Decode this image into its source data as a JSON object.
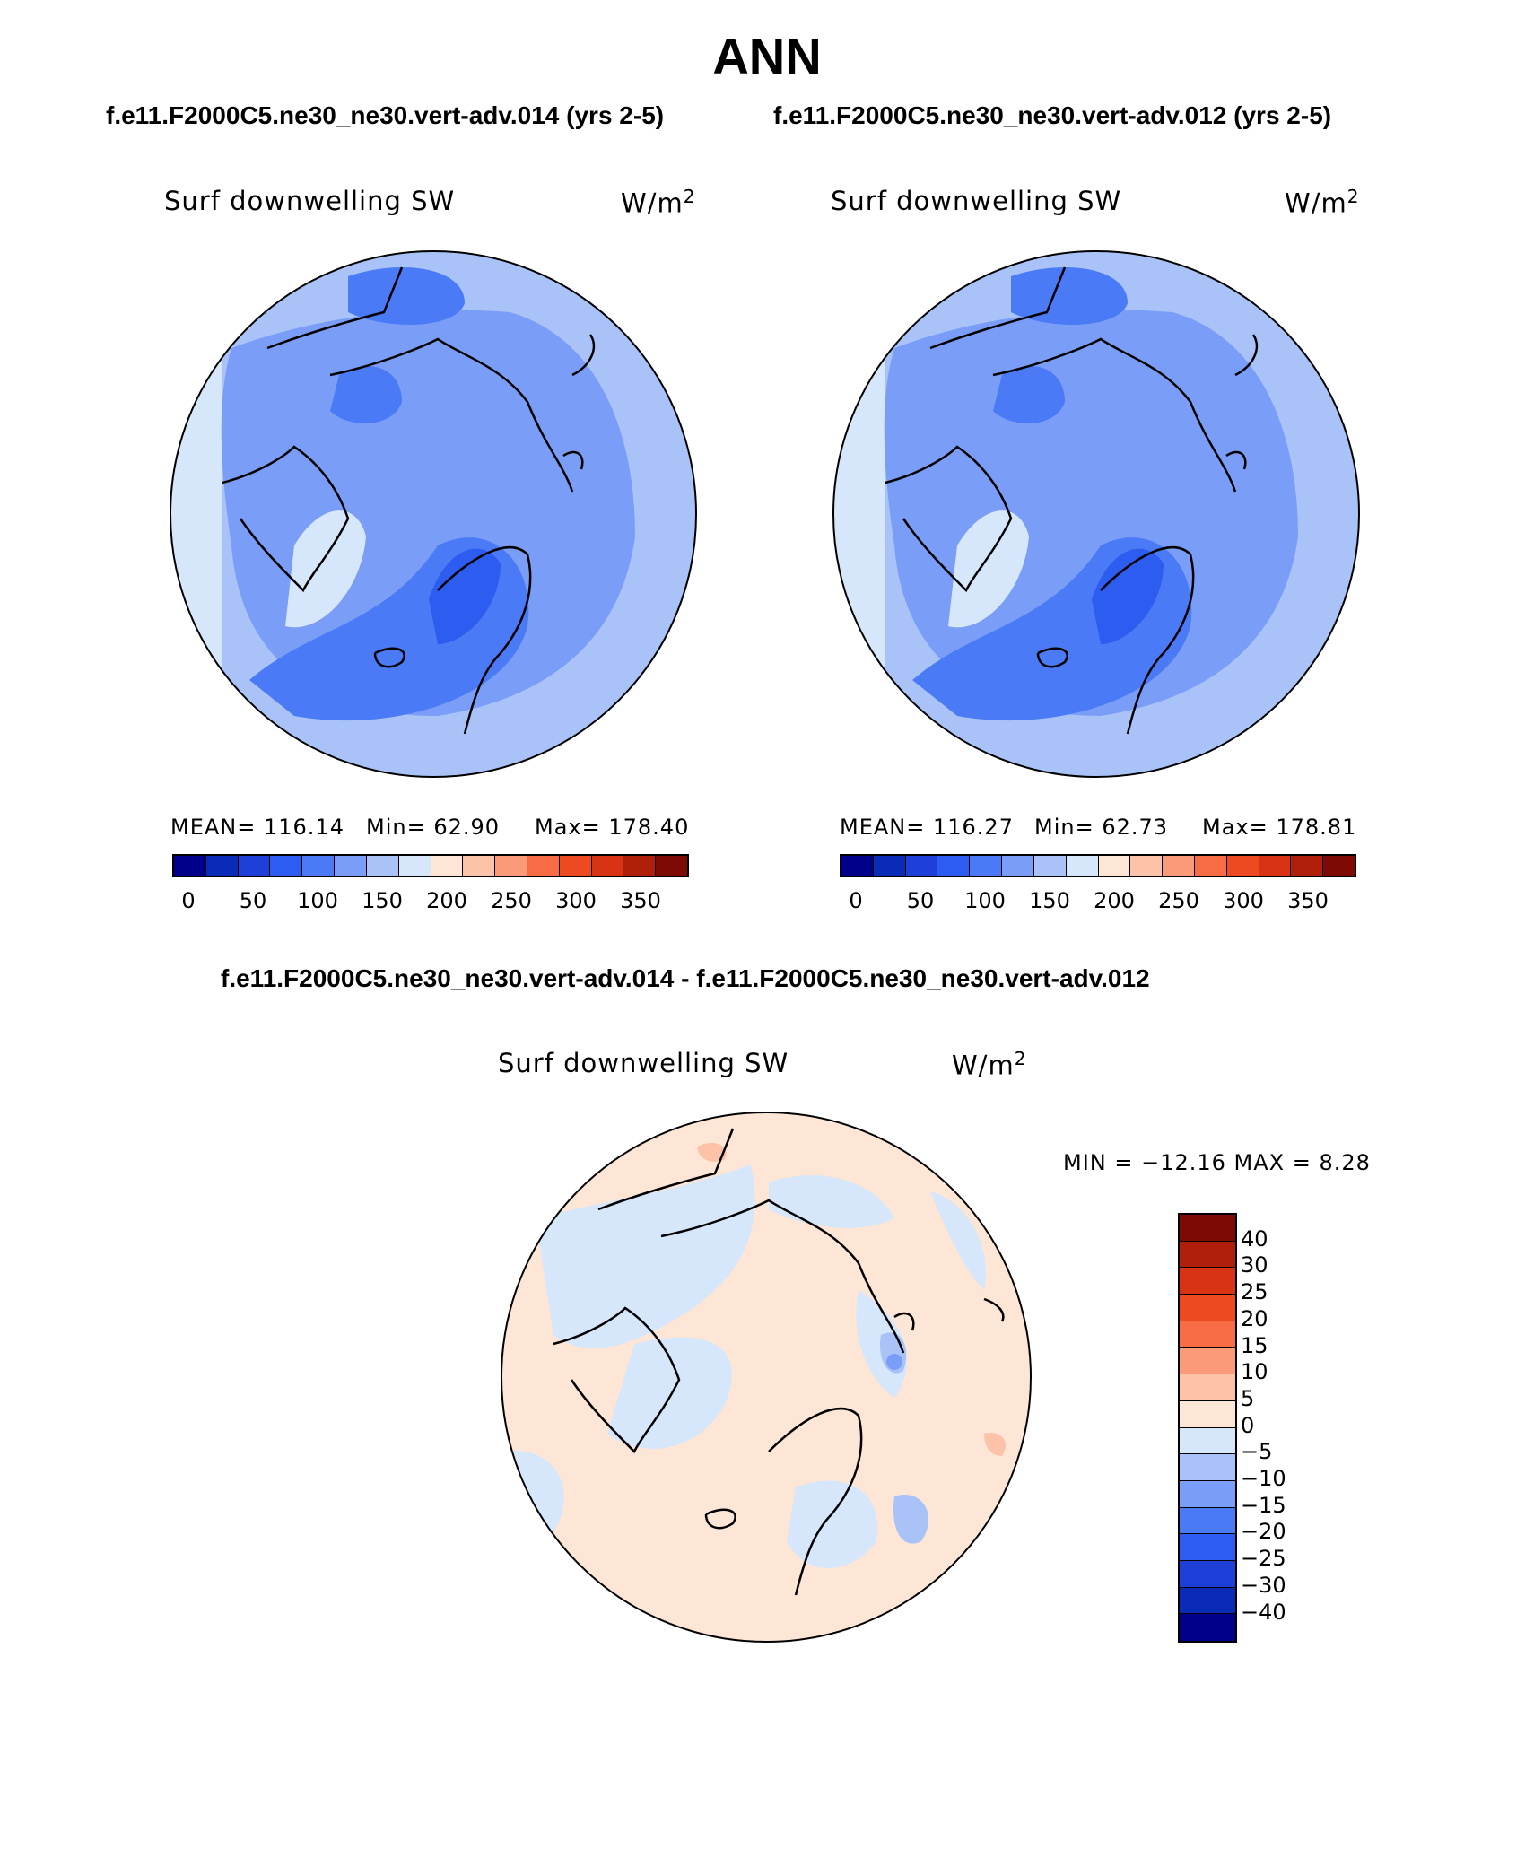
{
  "page_title": "ANN",
  "top_left": {
    "subtitle": "f.e11.F2000C5.ne30_ne30.vert-adv.014 (yrs 2-5)",
    "variable": "Surf downwelling SW",
    "units": "W/m",
    "units_sup": "2",
    "mean": "MEAN= 116.14",
    "min": "Min=   62.90",
    "max": "Max= 178.40"
  },
  "top_right": {
    "subtitle": "f.e11.F2000C5.ne30_ne30.vert-adv.012 (yrs 2-5)",
    "variable": "Surf downwelling SW",
    "units": "W/m",
    "units_sup": "2",
    "mean": "MEAN= 116.27",
    "min": "Min=   62.73",
    "max": "Max= 178.81"
  },
  "diff": {
    "subtitle": "f.e11.F2000C5.ne30_ne30.vert-adv.014 - f.e11.F2000C5.ne30_ne30.vert-adv.012",
    "variable": "Surf downwelling SW",
    "units": "W/m",
    "units_sup": "2",
    "minmax": "MIN = −12.16 MAX =    8.28"
  },
  "colorbar_abs": {
    "colors": [
      "#00008b",
      "#0a2bb5",
      "#1e40d8",
      "#2d5cf0",
      "#4a7af5",
      "#7a9ef7",
      "#a9c3f8",
      "#d6e6fb",
      "#fde6d6",
      "#fcc3a8",
      "#fb9a78",
      "#f86c45",
      "#ee4a22",
      "#d83314",
      "#b01f0a",
      "#7d0a04"
    ],
    "tick_labels": [
      "0",
      "50",
      "100",
      "150",
      "200",
      "250",
      "300",
      "350"
    ]
  },
  "colorbar_diff": {
    "colors": [
      "#7d0a04",
      "#b01f0a",
      "#d83314",
      "#ee4a22",
      "#f86c45",
      "#fb9a78",
      "#fcc3a8",
      "#fde6d6",
      "#d6e6fb",
      "#a9c3f8",
      "#7a9ef7",
      "#4a7af5",
      "#2d5cf0",
      "#1e40d8",
      "#0a2bb5",
      "#00008b"
    ],
    "tick_labels": [
      "40",
      "30",
      "25",
      "20",
      "15",
      "10",
      "5",
      "0",
      "−5",
      "−10",
      "−15",
      "−20",
      "−25",
      "−30",
      "−40"
    ]
  }
}
